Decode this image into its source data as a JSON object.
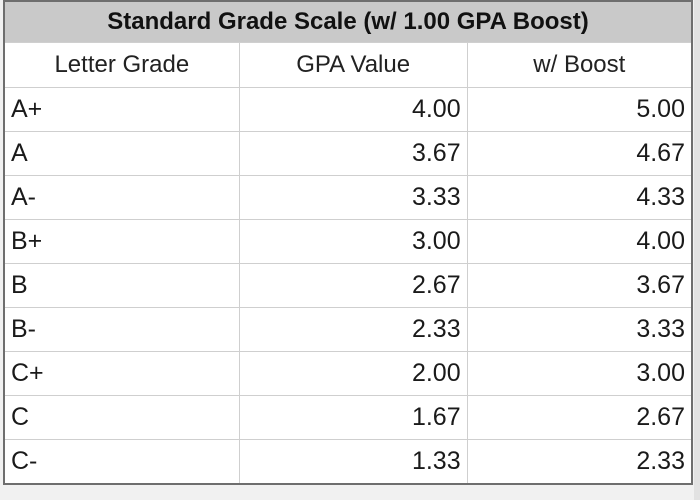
{
  "table": {
    "title": "Standard Grade Scale (w/ 1.00 GPA Boost)",
    "headers": [
      "Letter Grade",
      "GPA Value",
      "w/ Boost"
    ],
    "rows": [
      {
        "grade": "A+",
        "gpa": "4.00",
        "boost": "5.00"
      },
      {
        "grade": "A",
        "gpa": "3.67",
        "boost": "4.67"
      },
      {
        "grade": "A-",
        "gpa": "3.33",
        "boost": "4.33"
      },
      {
        "grade": "B+",
        "gpa": "3.00",
        "boost": "4.00"
      },
      {
        "grade": "B",
        "gpa": "2.67",
        "boost": "3.67"
      },
      {
        "grade": "B-",
        "gpa": "2.33",
        "boost": "3.33"
      },
      {
        "grade": "C+",
        "gpa": "2.00",
        "boost": "3.00"
      },
      {
        "grade": "C",
        "gpa": "1.67",
        "boost": "2.67"
      },
      {
        "grade": "C-",
        "gpa": "1.33",
        "boost": "2.33"
      }
    ]
  },
  "colors": {
    "title_background": "#c9c9c9",
    "border": "#6e6e6e",
    "grid": "#cfcfcf"
  }
}
